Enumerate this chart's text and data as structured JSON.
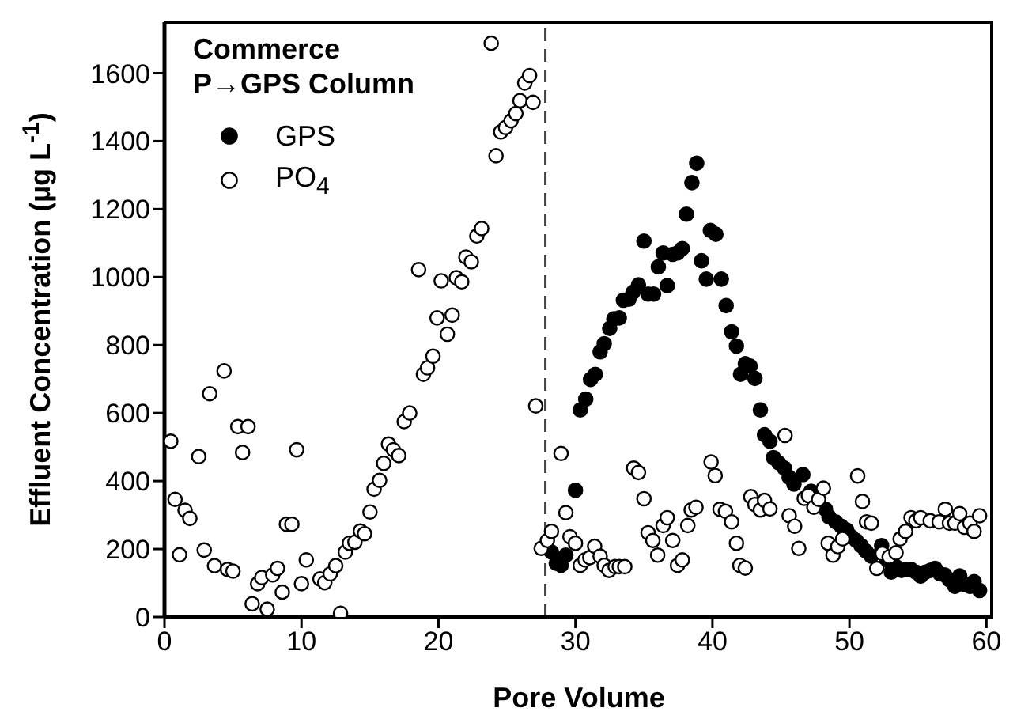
{
  "chart_data": {
    "type": "scatter",
    "title": "Commerce",
    "subtitle": "P→GPS Column",
    "xlabel": "Pore Volume",
    "ylabel": "Effluent Concentration (µg L$^{-1}$)",
    "xlim": [
      0,
      60.5
    ],
    "ylim": [
      0,
      1750
    ],
    "xticks": [
      0,
      10,
      20,
      30,
      40,
      50,
      60
    ],
    "yticks": [
      0,
      200,
      400,
      600,
      800,
      1000,
      1200,
      1400,
      1600
    ],
    "legend": "top left",
    "marker": "circle",
    "ref_lines": [
      {
        "axis": "x",
        "value": 27.8,
        "color": "#444444",
        "line_style": "dashed"
      }
    ],
    "series": [
      {
        "name": "GPS",
        "color": "#000000",
        "x": [
          28.25,
          28.6,
          28.95,
          29.3,
          30.0,
          30.35,
          30.75,
          31.1,
          31.45,
          31.8,
          32.1,
          32.5,
          32.8,
          33.2,
          33.5,
          33.9,
          34.2,
          34.6,
          35.0,
          35.3,
          35.7,
          36.05,
          36.4,
          36.7,
          37.1,
          37.45,
          37.8,
          38.1,
          38.5,
          38.85,
          39.2,
          39.55,
          39.85,
          40.25,
          40.65,
          41.0,
          41.4,
          41.75,
          42.05,
          42.4,
          42.75,
          43.1,
          43.5,
          43.8,
          44.2,
          44.45,
          44.85,
          45.25,
          45.6,
          45.95,
          46.6,
          47.2,
          47.75,
          48.25,
          48.5,
          49.0,
          49.4,
          49.8,
          50.15,
          50.5,
          50.85,
          51.2,
          51.6,
          52.0,
          52.35,
          52.7,
          53.05,
          53.4,
          53.8,
          54.15,
          54.5,
          54.85,
          55.2,
          55.55,
          55.9,
          56.25,
          56.6,
          56.95,
          57.3,
          57.7,
          58.05,
          58.4,
          58.8,
          59.1,
          59.5
        ],
        "values": [
          191,
          158,
          152,
          182,
          373,
          609,
          641,
          699,
          714,
          780,
          804,
          849,
          877,
          880,
          932,
          935,
          955,
          977,
          1106,
          950,
          950,
          1030,
          1071,
          975,
          1067,
          1071,
          1084,
          1185,
          1278,
          1335,
          1048,
          994,
          1137,
          1126,
          994,
          916,
          839,
          797,
          714,
          745,
          738,
          702,
          609,
          536,
          517,
          469,
          453,
          438,
          411,
          391,
          419,
          370,
          null,
          317,
          295,
          280,
          267,
          256,
          236,
          225,
          210,
          194,
          179,
          null,
          210,
          168,
          132,
          148,
          137,
          140,
          140,
          132,
          120,
          132,
          137,
          143,
          127,
          124,
          109,
          90,
          121,
          96,
          90,
          104,
          78
        ]
      },
      {
        "name": "PO$_{4}$",
        "color": "#ffffff",
        "x": [
          0.46,
          0.77,
          1.1,
          1.5,
          1.85,
          2.5,
          2.9,
          3.3,
          3.65,
          4.35,
          4.6,
          5.0,
          5.35,
          6.1,
          5.7,
          6.4,
          6.8,
          7.1,
          7.5,
          7.9,
          8.25,
          8.6,
          8.9,
          9.3,
          9.65,
          10.0,
          10.35,
          11.35,
          11.7,
          12.1,
          12.5,
          12.85,
          13.2,
          13.5,
          13.9,
          14.3,
          14.6,
          15.0,
          15.3,
          15.7,
          16.0,
          16.35,
          16.7,
          17.1,
          17.5,
          17.9,
          18.55,
          18.9,
          19.2,
          19.6,
          19.9,
          20.2,
          20.65,
          21.0,
          21.3,
          21.7,
          22.0,
          22.4,
          22.8,
          23.15,
          23.85,
          24.2,
          24.55,
          24.9,
          25.3,
          25.65,
          25.95,
          26.3,
          26.65,
          26.9,
          27.1,
          27.5,
          27.95,
          28.25,
          28.95,
          29.3,
          29.6,
          30.0,
          30.35,
          30.7,
          31.05,
          31.4,
          31.8,
          32.1,
          32.45,
          32.9,
          33.2,
          33.6,
          34.25,
          34.6,
          35.0,
          35.3,
          35.65,
          36.0,
          36.4,
          36.7,
          37.1,
          37.45,
          37.8,
          38.2,
          38.45,
          38.8,
          39.9,
          40.2,
          40.55,
          40.95,
          41.4,
          41.75,
          42.0,
          42.4,
          42.8,
          43.1,
          43.5,
          43.8,
          44.2,
          45.3,
          45.6,
          46.0,
          46.3,
          46.7,
          47.0,
          47.4,
          47.75,
          48.1,
          48.45,
          48.8,
          49.15,
          49.5,
          50.6,
          50.95,
          51.25,
          51.6,
          52.0,
          52.4,
          52.9,
          53.4,
          53.7,
          54.1,
          54.5,
          54.85,
          55.2,
          55.9,
          56.55,
          57.0,
          57.3,
          57.7,
          58.05,
          58.4,
          58.8,
          59.1,
          59.5
        ],
        "values": [
          517,
          346,
          183,
          314,
          290,
          472,
          197,
          657,
          151,
          724,
          140,
          135,
          560,
          560,
          484,
          39,
          98,
          116,
          23,
          124,
          143,
          73,
          273,
          273,
          492,
          98,
          168,
          112,
          101,
          127,
          151,
          11,
          191,
          217,
          220,
          253,
          245,
          309,
          376,
          402,
          452,
          509,
          492,
          475,
          575,
          600,
          1022,
          714,
          733,
          767,
          880,
          989,
          832,
          888,
          998,
          986,
          1059,
          1045,
          1121,
          1143,
          1688,
          1357,
          1427,
          1440,
          1460,
          1481,
          1519,
          1571,
          1593,
          1514,
          621,
          202,
          225,
          252,
          481,
          307,
          236,
          217,
          152,
          168,
          175,
          208,
          179,
          152,
          137,
          148,
          148,
          148,
          438,
          425,
          348,
          248,
          225,
          182,
          269,
          292,
          225,
          152,
          168,
          269,
          315,
          323,
          456,
          416,
          317,
          311,
          280,
          217,
          152,
          144,
          354,
          331,
          315,
          343,
          318,
          534,
          298,
          267,
          202,
          349,
          357,
          323,
          346,
          379,
          217,
          182,
          207,
          230,
          415,
          340,
          280,
          276,
          143,
          187,
          177,
          189,
          230,
          252,
          292,
          283,
          292,
          283,
          280,
          317,
          276,
          276,
          304,
          264,
          276,
          252,
          298
        ]
      }
    ]
  }
}
